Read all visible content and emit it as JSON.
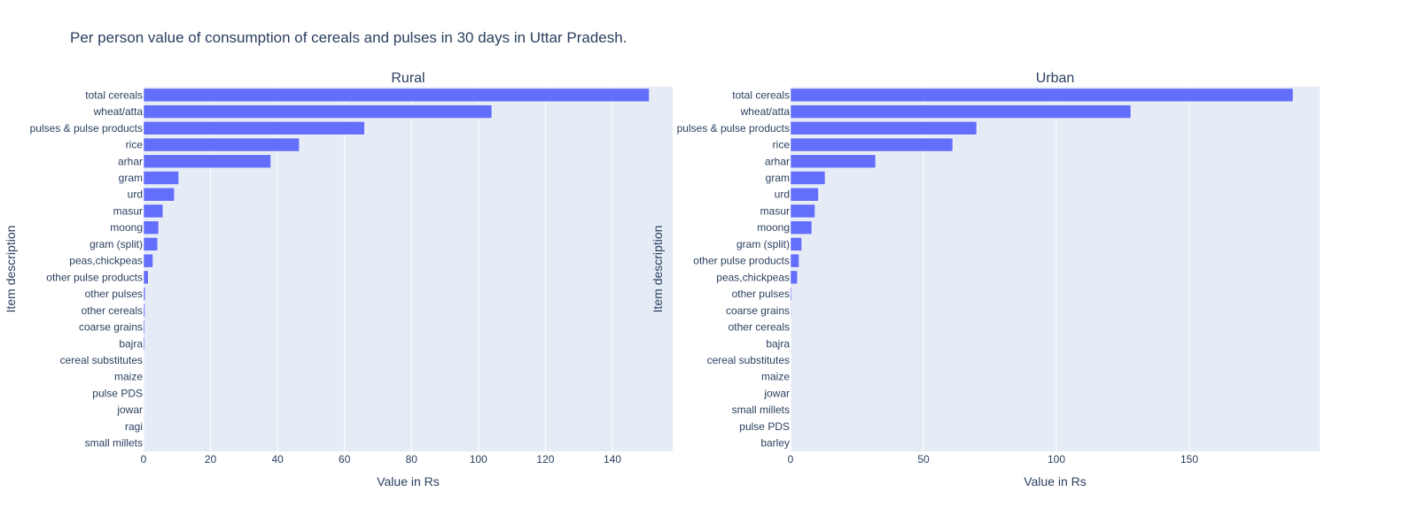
{
  "title": "Per person value of consumption of cereals and pulses in 30 days in Uttar Pradesh.",
  "colors": {
    "bar": "#636efa",
    "plot_bg": "#e5ecf6",
    "grid": "#ffffff",
    "text": "#2a3f5f"
  },
  "chart_data": [
    {
      "type": "bar",
      "orientation": "horizontal",
      "subplot_title": "Rural",
      "xlabel": "Value in Rs",
      "ylabel": "Item description",
      "xlim": [
        0,
        158
      ],
      "xticks": [
        0,
        20,
        40,
        60,
        80,
        100,
        120,
        140
      ],
      "grid": true,
      "categories": [
        "total cereals",
        "wheat/atta",
        "pulses & pulse products",
        "rice",
        "arhar",
        "gram",
        "urd",
        "masur",
        "moong",
        "gram (split)",
        "peas,chickpeas",
        "other pulse products",
        "other pulses",
        "other cereals",
        "coarse grains",
        "bajra",
        "cereal substitutes",
        "maize",
        "pulse PDS",
        "jowar",
        "ragi",
        "small millets"
      ],
      "values": [
        151,
        104,
        66,
        46.5,
        38,
        10.5,
        9.2,
        5.8,
        4.5,
        4.2,
        2.8,
        1.4,
        0.5,
        0.4,
        0.35,
        0.3,
        0.1,
        0.08,
        0.05,
        0.03,
        0.02,
        0.01
      ]
    },
    {
      "type": "bar",
      "orientation": "horizontal",
      "subplot_title": "Urban",
      "xlabel": "Value in Rs",
      "ylabel": "Item description",
      "xlim": [
        0,
        199
      ],
      "xticks": [
        0,
        50,
        100,
        150
      ],
      "grid": true,
      "categories": [
        "total cereals",
        "wheat/atta",
        "pulses & pulse products",
        "rice",
        "arhar",
        "gram",
        "urd",
        "masur",
        "moong",
        "gram (split)",
        "other pulse products",
        "peas,chickpeas",
        "other pulses",
        "coarse grains",
        "other cereals",
        "bajra",
        "cereal substitutes",
        "maize",
        "jowar",
        "small millets",
        "pulse PDS",
        "barley"
      ],
      "values": [
        189,
        128,
        70,
        61,
        32,
        13,
        10.5,
        9.2,
        8,
        4.2,
        3.2,
        2.6,
        0.4,
        0.2,
        0.15,
        0.1,
        0.08,
        0.05,
        0.03,
        0.02,
        0.02,
        0.01
      ]
    }
  ]
}
